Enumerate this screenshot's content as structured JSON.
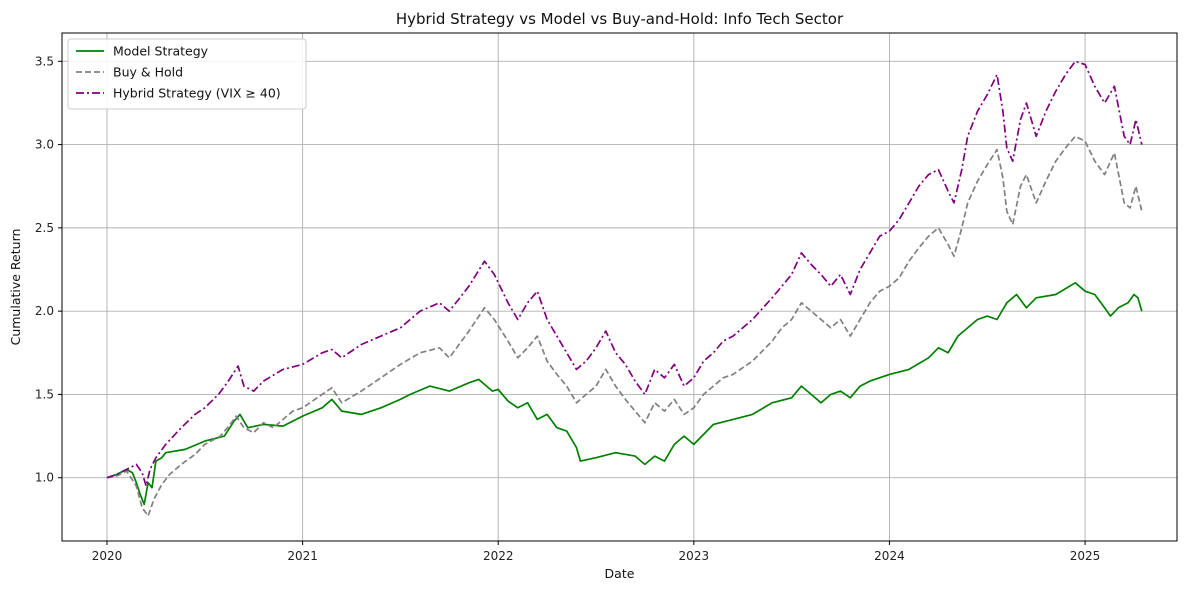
{
  "chart_data": {
    "type": "line",
    "title": "Hybrid Strategy vs Model vs Buy-and-Hold: Info Tech Sector",
    "xlabel": "Date",
    "ylabel": "Cumulative Return",
    "x_ticks": [
      "2020",
      "2021",
      "2022",
      "2023",
      "2024",
      "2025"
    ],
    "y_ticks": [
      "1.0",
      "1.5",
      "2.0",
      "2.5",
      "3.0",
      "3.5"
    ],
    "xlim": [
      2019.77,
      2025.47
    ],
    "ylim": [
      0.62,
      3.67
    ],
    "grid": true,
    "legend_position": "top-left",
    "series": [
      {
        "name": "Model Strategy",
        "color": "#008000",
        "dash": "solid",
        "points": [
          [
            2020.0,
            1.0
          ],
          [
            2020.05,
            1.02
          ],
          [
            2020.1,
            1.05
          ],
          [
            2020.13,
            1.03
          ],
          [
            2020.15,
            0.97
          ],
          [
            2020.17,
            0.9
          ],
          [
            2020.19,
            0.84
          ],
          [
            2020.21,
            0.97
          ],
          [
            2020.23,
            0.94
          ],
          [
            2020.25,
            1.1
          ],
          [
            2020.28,
            1.12
          ],
          [
            2020.3,
            1.15
          ],
          [
            2020.4,
            1.17
          ],
          [
            2020.5,
            1.22
          ],
          [
            2020.6,
            1.25
          ],
          [
            2020.65,
            1.34
          ],
          [
            2020.68,
            1.38
          ],
          [
            2020.72,
            1.3
          ],
          [
            2020.8,
            1.32
          ],
          [
            2020.9,
            1.31
          ],
          [
            2021.0,
            1.37
          ],
          [
            2021.1,
            1.42
          ],
          [
            2021.15,
            1.47
          ],
          [
            2021.2,
            1.4
          ],
          [
            2021.3,
            1.38
          ],
          [
            2021.4,
            1.42
          ],
          [
            2021.5,
            1.47
          ],
          [
            2021.55,
            1.5
          ],
          [
            2021.65,
            1.55
          ],
          [
            2021.75,
            1.52
          ],
          [
            2021.85,
            1.57
          ],
          [
            2021.9,
            1.59
          ],
          [
            2021.97,
            1.52
          ],
          [
            2022.0,
            1.53
          ],
          [
            2022.05,
            1.46
          ],
          [
            2022.1,
            1.42
          ],
          [
            2022.15,
            1.45
          ],
          [
            2022.2,
            1.35
          ],
          [
            2022.25,
            1.38
          ],
          [
            2022.3,
            1.3
          ],
          [
            2022.35,
            1.28
          ],
          [
            2022.4,
            1.18
          ],
          [
            2022.42,
            1.1
          ],
          [
            2022.5,
            1.12
          ],
          [
            2022.6,
            1.15
          ],
          [
            2022.7,
            1.13
          ],
          [
            2022.75,
            1.08
          ],
          [
            2022.8,
            1.13
          ],
          [
            2022.85,
            1.1
          ],
          [
            2022.9,
            1.2
          ],
          [
            2022.95,
            1.25
          ],
          [
            2023.0,
            1.2
          ],
          [
            2023.05,
            1.26
          ],
          [
            2023.1,
            1.32
          ],
          [
            2023.2,
            1.35
          ],
          [
            2023.3,
            1.38
          ],
          [
            2023.4,
            1.45
          ],
          [
            2023.5,
            1.48
          ],
          [
            2023.55,
            1.55
          ],
          [
            2023.6,
            1.5
          ],
          [
            2023.65,
            1.45
          ],
          [
            2023.7,
            1.5
          ],
          [
            2023.75,
            1.52
          ],
          [
            2023.8,
            1.48
          ],
          [
            2023.85,
            1.55
          ],
          [
            2023.9,
            1.58
          ],
          [
            2024.0,
            1.62
          ],
          [
            2024.1,
            1.65
          ],
          [
            2024.2,
            1.72
          ],
          [
            2024.25,
            1.78
          ],
          [
            2024.3,
            1.75
          ],
          [
            2024.35,
            1.85
          ],
          [
            2024.45,
            1.95
          ],
          [
            2024.5,
            1.97
          ],
          [
            2024.55,
            1.95
          ],
          [
            2024.6,
            2.05
          ],
          [
            2024.65,
            2.1
          ],
          [
            2024.7,
            2.02
          ],
          [
            2024.75,
            2.08
          ],
          [
            2024.85,
            2.1
          ],
          [
            2024.95,
            2.17
          ],
          [
            2025.0,
            2.12
          ],
          [
            2025.05,
            2.1
          ],
          [
            2025.1,
            2.02
          ],
          [
            2025.13,
            1.97
          ],
          [
            2025.17,
            2.02
          ],
          [
            2025.22,
            2.05
          ],
          [
            2025.25,
            2.1
          ],
          [
            2025.27,
            2.08
          ],
          [
            2025.29,
            2.0
          ]
        ]
      },
      {
        "name": "Buy & Hold",
        "color": "#808080",
        "dash": "dashed",
        "points": [
          [
            2020.0,
            1.0
          ],
          [
            2020.05,
            1.01
          ],
          [
            2020.1,
            1.04
          ],
          [
            2020.15,
            0.95
          ],
          [
            2020.18,
            0.82
          ],
          [
            2020.21,
            0.77
          ],
          [
            2020.24,
            0.87
          ],
          [
            2020.28,
            0.96
          ],
          [
            2020.32,
            1.02
          ],
          [
            2020.38,
            1.08
          ],
          [
            2020.45,
            1.14
          ],
          [
            2020.5,
            1.2
          ],
          [
            2020.58,
            1.25
          ],
          [
            2020.63,
            1.32
          ],
          [
            2020.66,
            1.37
          ],
          [
            2020.7,
            1.3
          ],
          [
            2020.75,
            1.27
          ],
          [
            2020.8,
            1.33
          ],
          [
            2020.85,
            1.3
          ],
          [
            2020.95,
            1.4
          ],
          [
            2021.0,
            1.42
          ],
          [
            2021.1,
            1.5
          ],
          [
            2021.15,
            1.54
          ],
          [
            2021.2,
            1.45
          ],
          [
            2021.3,
            1.52
          ],
          [
            2021.4,
            1.6
          ],
          [
            2021.5,
            1.68
          ],
          [
            2021.6,
            1.75
          ],
          [
            2021.7,
            1.78
          ],
          [
            2021.75,
            1.72
          ],
          [
            2021.85,
            1.88
          ],
          [
            2021.93,
            2.02
          ],
          [
            2021.98,
            1.95
          ],
          [
            2022.05,
            1.82
          ],
          [
            2022.1,
            1.72
          ],
          [
            2022.15,
            1.78
          ],
          [
            2022.2,
            1.85
          ],
          [
            2022.25,
            1.7
          ],
          [
            2022.3,
            1.62
          ],
          [
            2022.35,
            1.55
          ],
          [
            2022.4,
            1.45
          ],
          [
            2022.45,
            1.5
          ],
          [
            2022.5,
            1.55
          ],
          [
            2022.55,
            1.65
          ],
          [
            2022.6,
            1.55
          ],
          [
            2022.65,
            1.47
          ],
          [
            2022.7,
            1.4
          ],
          [
            2022.75,
            1.33
          ],
          [
            2022.8,
            1.45
          ],
          [
            2022.85,
            1.4
          ],
          [
            2022.9,
            1.47
          ],
          [
            2022.95,
            1.38
          ],
          [
            2023.0,
            1.42
          ],
          [
            2023.05,
            1.5
          ],
          [
            2023.1,
            1.55
          ],
          [
            2023.15,
            1.6
          ],
          [
            2023.2,
            1.62
          ],
          [
            2023.3,
            1.7
          ],
          [
            2023.4,
            1.82
          ],
          [
            2023.45,
            1.9
          ],
          [
            2023.5,
            1.95
          ],
          [
            2023.55,
            2.05
          ],
          [
            2023.6,
            2.0
          ],
          [
            2023.65,
            1.95
          ],
          [
            2023.7,
            1.9
          ],
          [
            2023.75,
            1.95
          ],
          [
            2023.8,
            1.85
          ],
          [
            2023.85,
            1.95
          ],
          [
            2023.9,
            2.05
          ],
          [
            2023.95,
            2.12
          ],
          [
            2024.0,
            2.15
          ],
          [
            2024.05,
            2.2
          ],
          [
            2024.1,
            2.3
          ],
          [
            2024.15,
            2.38
          ],
          [
            2024.2,
            2.45
          ],
          [
            2024.25,
            2.5
          ],
          [
            2024.3,
            2.4
          ],
          [
            2024.33,
            2.33
          ],
          [
            2024.37,
            2.5
          ],
          [
            2024.4,
            2.65
          ],
          [
            2024.45,
            2.78
          ],
          [
            2024.5,
            2.88
          ],
          [
            2024.55,
            2.97
          ],
          [
            2024.58,
            2.8
          ],
          [
            2024.6,
            2.6
          ],
          [
            2024.63,
            2.52
          ],
          [
            2024.67,
            2.75
          ],
          [
            2024.7,
            2.82
          ],
          [
            2024.75,
            2.65
          ],
          [
            2024.8,
            2.78
          ],
          [
            2024.85,
            2.9
          ],
          [
            2024.9,
            2.98
          ],
          [
            2024.95,
            3.05
          ],
          [
            2025.0,
            3.02
          ],
          [
            2025.05,
            2.9
          ],
          [
            2025.1,
            2.82
          ],
          [
            2025.15,
            2.95
          ],
          [
            2025.2,
            2.65
          ],
          [
            2025.23,
            2.62
          ],
          [
            2025.26,
            2.75
          ],
          [
            2025.29,
            2.6
          ]
        ]
      },
      {
        "name": "Hybrid Strategy (VIX ≥ 40)",
        "color": "#800080",
        "dash": "dashdot",
        "points": [
          [
            2020.0,
            1.0
          ],
          [
            2020.05,
            1.02
          ],
          [
            2020.1,
            1.05
          ],
          [
            2020.15,
            1.08
          ],
          [
            2020.18,
            1.03
          ],
          [
            2020.2,
            0.95
          ],
          [
            2020.22,
            1.05
          ],
          [
            2020.25,
            1.12
          ],
          [
            2020.3,
            1.2
          ],
          [
            2020.38,
            1.3
          ],
          [
            2020.45,
            1.38
          ],
          [
            2020.5,
            1.42
          ],
          [
            2020.57,
            1.5
          ],
          [
            2020.62,
            1.58
          ],
          [
            2020.67,
            1.67
          ],
          [
            2020.7,
            1.55
          ],
          [
            2020.75,
            1.52
          ],
          [
            2020.8,
            1.58
          ],
          [
            2020.9,
            1.65
          ],
          [
            2021.0,
            1.68
          ],
          [
            2021.1,
            1.75
          ],
          [
            2021.15,
            1.77
          ],
          [
            2021.2,
            1.72
          ],
          [
            2021.3,
            1.8
          ],
          [
            2021.4,
            1.85
          ],
          [
            2021.5,
            1.9
          ],
          [
            2021.6,
            2.0
          ],
          [
            2021.7,
            2.05
          ],
          [
            2021.75,
            2.0
          ],
          [
            2021.85,
            2.15
          ],
          [
            2021.93,
            2.3
          ],
          [
            2021.98,
            2.22
          ],
          [
            2022.05,
            2.05
          ],
          [
            2022.1,
            1.95
          ],
          [
            2022.15,
            2.05
          ],
          [
            2022.2,
            2.12
          ],
          [
            2022.25,
            1.95
          ],
          [
            2022.3,
            1.85
          ],
          [
            2022.35,
            1.75
          ],
          [
            2022.4,
            1.65
          ],
          [
            2022.45,
            1.7
          ],
          [
            2022.5,
            1.78
          ],
          [
            2022.55,
            1.88
          ],
          [
            2022.6,
            1.75
          ],
          [
            2022.65,
            1.68
          ],
          [
            2022.7,
            1.58
          ],
          [
            2022.75,
            1.5
          ],
          [
            2022.8,
            1.65
          ],
          [
            2022.85,
            1.6
          ],
          [
            2022.9,
            1.68
          ],
          [
            2022.95,
            1.55
          ],
          [
            2023.0,
            1.6
          ],
          [
            2023.05,
            1.7
          ],
          [
            2023.1,
            1.75
          ],
          [
            2023.15,
            1.82
          ],
          [
            2023.2,
            1.85
          ],
          [
            2023.3,
            1.95
          ],
          [
            2023.4,
            2.08
          ],
          [
            2023.45,
            2.15
          ],
          [
            2023.5,
            2.22
          ],
          [
            2023.55,
            2.35
          ],
          [
            2023.6,
            2.28
          ],
          [
            2023.65,
            2.22
          ],
          [
            2023.7,
            2.15
          ],
          [
            2023.75,
            2.22
          ],
          [
            2023.8,
            2.1
          ],
          [
            2023.85,
            2.25
          ],
          [
            2023.9,
            2.35
          ],
          [
            2023.95,
            2.45
          ],
          [
            2024.0,
            2.48
          ],
          [
            2024.05,
            2.55
          ],
          [
            2024.1,
            2.65
          ],
          [
            2024.15,
            2.75
          ],
          [
            2024.2,
            2.82
          ],
          [
            2024.25,
            2.85
          ],
          [
            2024.3,
            2.72
          ],
          [
            2024.33,
            2.65
          ],
          [
            2024.37,
            2.85
          ],
          [
            2024.4,
            3.05
          ],
          [
            2024.45,
            3.2
          ],
          [
            2024.5,
            3.3
          ],
          [
            2024.55,
            3.42
          ],
          [
            2024.58,
            3.2
          ],
          [
            2024.6,
            2.98
          ],
          [
            2024.63,
            2.9
          ],
          [
            2024.67,
            3.15
          ],
          [
            2024.7,
            3.25
          ],
          [
            2024.75,
            3.05
          ],
          [
            2024.8,
            3.2
          ],
          [
            2024.85,
            3.32
          ],
          [
            2024.9,
            3.42
          ],
          [
            2024.95,
            3.5
          ],
          [
            2025.0,
            3.48
          ],
          [
            2025.05,
            3.35
          ],
          [
            2025.1,
            3.25
          ],
          [
            2025.15,
            3.35
          ],
          [
            2025.2,
            3.05
          ],
          [
            2025.23,
            3.0
          ],
          [
            2025.26,
            3.15
          ],
          [
            2025.29,
            3.0
          ]
        ]
      }
    ]
  }
}
